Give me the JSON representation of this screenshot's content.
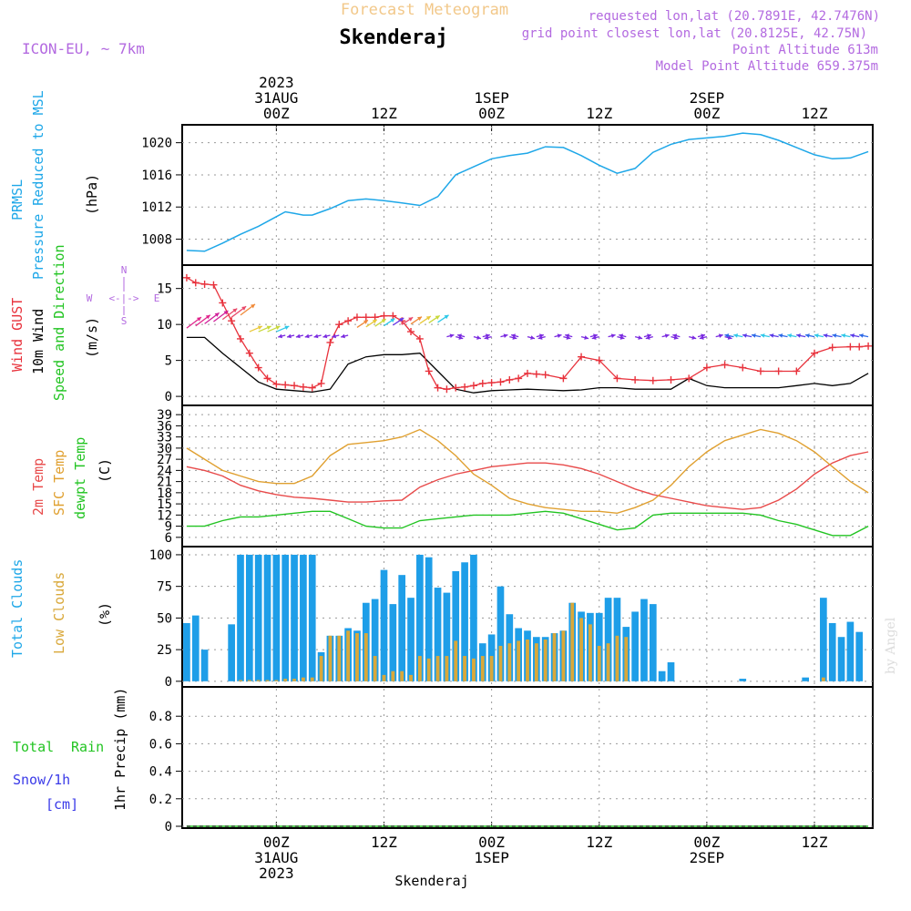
{
  "header": {
    "subtitle": "Forecast Meteogram",
    "location": "Skenderaj",
    "model": "ICON-EU, ~ 7km",
    "requested": "requested lon,lat (20.7891E, 42.7476N)",
    "grid_point": "grid point closest lon,lat (20.8125E, 42.75N)",
    "point_alt": "Point Altitude 613m",
    "model_alt": "Model Point Altitude 659.375m"
  },
  "time_axis": {
    "top_labels": [
      {
        "day": "00Z",
        "date": "31AUG",
        "year": "2023",
        "hour": 0
      },
      {
        "day": "12Z",
        "date": "",
        "year": "",
        "hour": 12
      },
      {
        "day": "00Z",
        "date": "1SEP",
        "year": "",
        "hour": 24
      },
      {
        "day": "12Z",
        "date": "",
        "year": "",
        "hour": 36
      },
      {
        "day": "00Z",
        "date": "2SEP",
        "year": "",
        "hour": 48
      },
      {
        "day": "12Z",
        "date": "",
        "year": "",
        "hour": 60
      }
    ],
    "bottom_labels": [
      {
        "day": "00Z",
        "date": "31AUG",
        "year": "2023",
        "hour": 0
      },
      {
        "day": "12Z",
        "date": "",
        "year": "",
        "hour": 12
      },
      {
        "day": "00Z",
        "date": "1SEP",
        "year": "",
        "hour": 24
      },
      {
        "day": "12Z",
        "date": "",
        "year": "",
        "hour": 36
      },
      {
        "day": "00Z",
        "date": "2SEP",
        "year": "",
        "hour": 48
      },
      {
        "day": "12Z",
        "date": "",
        "year": "",
        "hour": 60
      }
    ],
    "footer": "Skenderaj",
    "credit": "by Angel"
  },
  "colors": {
    "pressure": "#1ea7e8",
    "gust": "#e8323c",
    "wind": "#000000",
    "temp2m": "#e84a4a",
    "sfc": "#e0a030",
    "dewpt": "#22c422",
    "total_clouds": "#1e9ee8",
    "low_clouds": "#d9a83a",
    "rain": "#22c422",
    "snow": "#3a3ae8",
    "purple": "#b36ae0"
  },
  "labels": {
    "prmsl": "PRMSL",
    "pressure_msl": "Pressure Reduced to MSL",
    "hpa": "(hPa)",
    "wind_gust": "Wind GUST",
    "wind_10m": "10m Wind",
    "speed_dir": "Speed and Direction",
    "ms": "(m/s)",
    "compass_n": "N",
    "compass_s": "S",
    "compass_w": "W",
    "compass_e": "E",
    "compass_mid": "<-|->",
    "temp_2m": "2m Temp",
    "sfc_temp": "SFC Temp",
    "dewpt_temp": "dewpt Temp",
    "c": "(C)",
    "total_clouds": "Total Clouds",
    "low_clouds": "Low Clouds",
    "pct": "(%)",
    "precip": "1hr Precip (mm)",
    "total": "Total",
    "rain": "Rain",
    "snow": "Snow/1h",
    "cm": "[cm]"
  },
  "chart_data": [
    {
      "type": "line",
      "name": "pressure",
      "ylim": [
        1005,
        1022
      ],
      "yticks": [
        "1008",
        "1012",
        "1016",
        "1020"
      ],
      "x": [
        -10,
        -8,
        -6,
        -4,
        -2,
        0,
        1,
        2,
        3,
        4,
        6,
        8,
        10,
        12,
        14,
        16,
        18,
        20,
        22,
        24,
        26,
        28,
        30,
        32,
        34,
        36,
        38,
        40,
        42,
        44,
        46,
        48,
        50,
        52,
        54,
        56,
        58,
        60,
        62,
        64,
        66
      ],
      "y": [
        1006.6,
        1006.5,
        1007.5,
        1008.6,
        1009.6,
        1010.8,
        1011.4,
        1011.2,
        1011.0,
        1011.0,
        1011.8,
        1012.8,
        1013.0,
        1012.8,
        1012.5,
        1012.2,
        1013.3,
        1016.0,
        1017.0,
        1018.0,
        1018.4,
        1018.7,
        1019.5,
        1019.4,
        1018.4,
        1017.2,
        1016.2,
        1016.8,
        1018.8,
        1019.8,
        1020.4,
        1020.6,
        1020.8,
        1021.2,
        1021.0,
        1020.3,
        1019.4,
        1018.5,
        1018.0,
        1018.1,
        1018.9
      ],
      "series": [
        {
          "name": "PRMSL"
        }
      ]
    },
    {
      "type": "line",
      "name": "wind",
      "ylim": [
        -1,
        18
      ],
      "yticks": [
        "0",
        "5",
        "10",
        "15"
      ],
      "series": [
        {
          "name": "Wind GUST",
          "x": [
            -10,
            -9,
            -8,
            -7,
            -6,
            -5,
            -4,
            -3,
            -2,
            -1,
            0,
            1,
            2,
            3,
            4,
            5,
            6,
            7,
            8,
            9,
            10,
            11,
            12,
            13,
            14,
            15,
            16,
            17,
            18,
            19,
            20,
            21,
            22,
            23,
            24,
            25,
            26,
            27,
            28,
            29,
            30,
            32,
            34,
            36,
            38,
            40,
            42,
            44,
            46,
            48,
            50,
            52,
            54,
            56,
            58,
            60,
            62,
            64,
            65,
            66
          ],
          "y": [
            16.5,
            15.8,
            15.6,
            15.5,
            13,
            10.5,
            8,
            6,
            4,
            2.5,
            1.7,
            1.6,
            1.5,
            1.3,
            1.2,
            1.8,
            7.5,
            10,
            10.5,
            11,
            11,
            11,
            11.2,
            11.2,
            10.5,
            9,
            8,
            3.5,
            1.2,
            1.0,
            1.2,
            1.3,
            1.5,
            1.8,
            1.9,
            2.0,
            2.3,
            2.5,
            3.2,
            3.1,
            3.0,
            2.5,
            5.5,
            5.0,
            2.5,
            2.3,
            2.2,
            2.3,
            2.5,
            4.0,
            4.4,
            4.0,
            3.5,
            3.5,
            3.5,
            6.0,
            6.8,
            6.9,
            6.9,
            7.0
          ]
        },
        {
          "name": "10m Wind",
          "x": [
            -10,
            -8,
            -6,
            -4,
            -2,
            0,
            2,
            4,
            6,
            8,
            10,
            12,
            14,
            16,
            18,
            20,
            22,
            24,
            26,
            28,
            30,
            32,
            34,
            36,
            38,
            40,
            42,
            44,
            46,
            48,
            50,
            52,
            54,
            56,
            58,
            60,
            62,
            64,
            66
          ],
          "y": [
            8.2,
            8.2,
            6.0,
            4.0,
            2.0,
            1.0,
            0.8,
            0.6,
            1.0,
            4.5,
            5.5,
            5.8,
            5.8,
            6.0,
            3.5,
            1.0,
            0.5,
            0.8,
            0.9,
            1.0,
            0.9,
            0.8,
            0.9,
            1.2,
            1.2,
            1.0,
            1.0,
            1.0,
            2.5,
            1.5,
            1.2,
            1.2,
            1.2,
            1.2,
            1.5,
            1.8,
            1.5,
            1.8,
            3.2
          ]
        }
      ]
    },
    {
      "type": "line",
      "name": "temperature",
      "ylim": [
        4,
        41
      ],
      "yticks": [
        "6",
        "9",
        "12",
        "15",
        "18",
        "21",
        "24",
        "27",
        "30",
        "33",
        "36",
        "39"
      ],
      "series": [
        {
          "name": "2m Temp",
          "x": [
            -10,
            -8,
            -6,
            -4,
            -2,
            0,
            2,
            4,
            6,
            8,
            10,
            12,
            14,
            16,
            18,
            20,
            22,
            24,
            26,
            28,
            30,
            32,
            34,
            36,
            38,
            40,
            42,
            44,
            46,
            48,
            50,
            52,
            54,
            56,
            58,
            60,
            62,
            64,
            66
          ],
          "y": [
            25.0,
            24.0,
            22.5,
            20.0,
            18.5,
            17.5,
            16.8,
            16.5,
            16.0,
            15.5,
            15.5,
            15.8,
            16.0,
            19.5,
            21.5,
            23.0,
            24.0,
            25.0,
            25.5,
            26.0,
            26.0,
            25.5,
            24.5,
            23.0,
            21.0,
            19.0,
            17.5,
            16.5,
            15.5,
            14.5,
            14.0,
            13.5,
            14.0,
            16.0,
            19.0,
            23.0,
            26.0,
            28.0,
            29.0
          ]
        },
        {
          "name": "SFC Temp",
          "x": [
            -10,
            -8,
            -6,
            -4,
            -2,
            0,
            2,
            4,
            6,
            8,
            10,
            12,
            14,
            16,
            18,
            20,
            22,
            24,
            26,
            28,
            30,
            32,
            34,
            36,
            38,
            40,
            42,
            44,
            46,
            48,
            50,
            52,
            54,
            56,
            58,
            60,
            62,
            64,
            66
          ],
          "y": [
            30.0,
            27.0,
            24.0,
            22.5,
            21.0,
            20.5,
            20.5,
            22.5,
            28.0,
            31.0,
            31.5,
            32.0,
            33.0,
            35.0,
            32.0,
            28.0,
            23.0,
            20.0,
            16.5,
            15.0,
            14.0,
            13.5,
            13.0,
            13.0,
            12.5,
            14.0,
            16.0,
            20.0,
            25.0,
            29.0,
            32.0,
            33.5,
            35.0,
            34.0,
            32.0,
            29.0,
            25.0,
            21.0,
            18.0
          ]
        },
        {
          "name": "dewpt Temp",
          "x": [
            -10,
            -8,
            -6,
            -4,
            -2,
            0,
            2,
            4,
            6,
            8,
            10,
            12,
            14,
            16,
            18,
            20,
            22,
            24,
            26,
            28,
            30,
            32,
            34,
            36,
            38,
            40,
            42,
            44,
            46,
            48,
            50,
            52,
            54,
            56,
            58,
            60,
            62,
            64,
            66
          ],
          "y": [
            9.0,
            9.0,
            10.5,
            11.5,
            11.5,
            12.0,
            12.5,
            13.0,
            13.0,
            11.0,
            9.0,
            8.5,
            8.5,
            10.5,
            11.0,
            11.5,
            12.0,
            12.0,
            12.0,
            12.5,
            13.0,
            12.5,
            11.0,
            9.5,
            8.0,
            8.5,
            12.0,
            12.5,
            12.5,
            12.5,
            12.5,
            12.5,
            12.0,
            10.5,
            9.5,
            8.0,
            6.5,
            6.5,
            9.0
          ]
        }
      ]
    },
    {
      "type": "bar",
      "name": "clouds",
      "ylim": [
        -3,
        105
      ],
      "yticks": [
        "0",
        "25",
        "50",
        "75",
        "100"
      ],
      "x": [
        -10,
        -9,
        -8,
        -7,
        -6,
        -5,
        -4,
        -3,
        -2,
        -1,
        0,
        1,
        2,
        3,
        4,
        5,
        6,
        7,
        8,
        9,
        10,
        11,
        12,
        13,
        14,
        15,
        16,
        17,
        18,
        19,
        20,
        21,
        22,
        23,
        24,
        25,
        26,
        27,
        28,
        29,
        30,
        31,
        32,
        33,
        34,
        35,
        36,
        37,
        38,
        39,
        40,
        41,
        42,
        43,
        44,
        45,
        46,
        47,
        48,
        49,
        50,
        51,
        52,
        53,
        54,
        55,
        56,
        57,
        58,
        59,
        60,
        61,
        62,
        63,
        64,
        65,
        66
      ],
      "series": [
        {
          "name": "Total Clouds",
          "values": [
            46,
            52,
            25,
            0,
            0,
            45,
            100,
            100,
            100,
            100,
            100,
            100,
            100,
            100,
            100,
            23,
            36,
            36,
            42,
            40,
            62,
            65,
            88,
            61,
            84,
            66,
            100,
            98,
            74,
            70,
            87,
            94,
            100,
            30,
            37,
            75,
            53,
            42,
            40,
            35,
            35,
            38,
            40,
            62,
            55,
            54,
            54,
            66,
            66,
            43,
            55,
            65,
            61,
            8,
            15,
            0,
            0,
            0,
            0,
            0,
            0,
            0,
            2,
            0,
            0,
            0,
            0,
            0,
            0,
            3,
            0,
            66,
            46,
            35,
            47,
            39,
            0
          ]
        },
        {
          "name": "Low Clouds",
          "values": [
            0,
            0,
            0,
            0,
            0,
            0,
            1,
            1,
            1,
            1,
            1,
            2,
            2,
            3,
            3,
            20,
            36,
            36,
            40,
            38,
            38,
            20,
            5,
            8,
            8,
            5,
            20,
            18,
            20,
            20,
            32,
            20,
            18,
            20,
            20,
            28,
            30,
            32,
            33,
            30,
            33,
            38,
            40,
            62,
            50,
            45,
            28,
            30,
            36,
            35,
            0,
            0,
            0,
            0,
            0,
            0,
            0,
            0,
            0,
            0,
            0,
            0,
            0,
            0,
            0,
            0,
            0,
            0,
            0,
            0,
            0,
            3,
            0,
            0,
            0,
            0,
            0
          ]
        }
      ]
    },
    {
      "type": "line",
      "name": "precipitation",
      "ylim": [
        0,
        1.0
      ],
      "yticks": [
        "0",
        "0.2",
        "0.4",
        "0.6",
        "0.8"
      ],
      "series": [
        {
          "name": "Total Rain",
          "x": [
            -10,
            66
          ],
          "y": [
            0,
            0
          ]
        },
        {
          "name": "Snow/1h",
          "x": [
            -10,
            66
          ],
          "y": [
            0,
            0
          ]
        }
      ]
    }
  ]
}
